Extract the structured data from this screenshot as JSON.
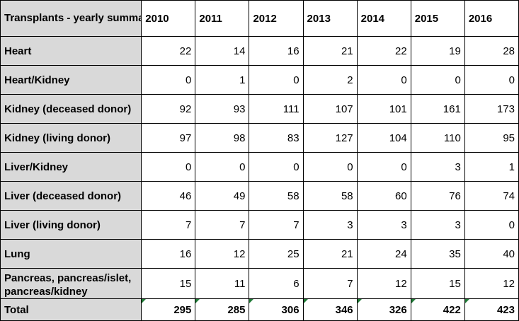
{
  "table": {
    "corner_label": "Transplants - yearly summary",
    "years": [
      "2010",
      "2011",
      "2012",
      "2013",
      "2014",
      "2015",
      "2016"
    ],
    "rows": [
      {
        "label": "Heart",
        "values": [
          "22",
          "14",
          "16",
          "21",
          "22",
          "19",
          "28"
        ]
      },
      {
        "label": "Heart/Kidney",
        "values": [
          "0",
          "1",
          "0",
          "2",
          "0",
          "0",
          "0"
        ]
      },
      {
        "label": "Kidney (deceased donor)",
        "values": [
          "92",
          "93",
          "111",
          "107",
          "101",
          "161",
          "173"
        ]
      },
      {
        "label": "Kidney (living donor)",
        "values": [
          "97",
          "98",
          "83",
          "127",
          "104",
          "110",
          "95"
        ]
      },
      {
        "label": "Liver/Kidney",
        "values": [
          "0",
          "0",
          "0",
          "0",
          "0",
          "3",
          "1"
        ]
      },
      {
        "label": "Liver (deceased donor)",
        "values": [
          "46",
          "49",
          "58",
          "58",
          "60",
          "76",
          "74"
        ]
      },
      {
        "label": "Liver (living donor)",
        "values": [
          "7",
          "7",
          "7",
          "3",
          "3",
          "3",
          "0"
        ]
      },
      {
        "label": "Lung",
        "values": [
          "16",
          "12",
          "25",
          "21",
          "24",
          "35",
          "40"
        ]
      },
      {
        "label": "Pancreas, pancreas/islet, pancreas/kidney",
        "values": [
          "15",
          "11",
          "6",
          "7",
          "12",
          "15",
          "12"
        ]
      }
    ],
    "total": {
      "label": "Total",
      "values": [
        "295",
        "285",
        "306",
        "346",
        "326",
        "422",
        "423"
      ]
    }
  },
  "colors": {
    "header_fill": "#d9d9d9",
    "cell_fill": "#ffffff",
    "grid": "#000000",
    "error_flag": "#1f7a35"
  }
}
